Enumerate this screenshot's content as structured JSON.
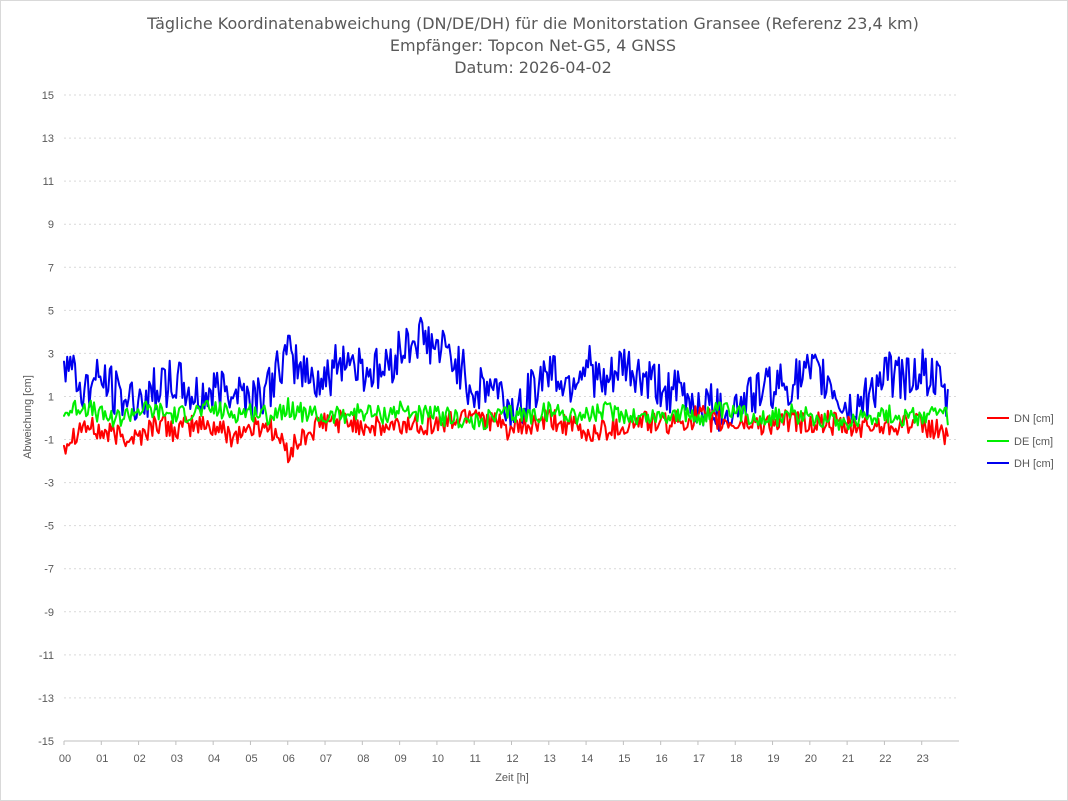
{
  "chart_data": {
    "type": "line",
    "title": [
      "Tägliche Koordinatenabweichung (DN/DE/DH) für die Monitorstation Gransee (Referenz 23,4 km)",
      "Empfänger: Topcon Net-G5, 4 GNSS",
      "Datum: 2026-04-02"
    ],
    "xlabel": "Zeit [h]",
    "ylabel": "Abweichung [cm]",
    "xlim": [
      0,
      24
    ],
    "ylim": [
      -15,
      15
    ],
    "y_ticks": [
      "15",
      "13",
      "11",
      "9",
      "7",
      "5",
      "3",
      "1",
      "-1",
      "-3",
      "-5",
      "-7",
      "-9",
      "-11",
      "-13",
      "-15"
    ],
    "x_ticks": [
      "00",
      "01",
      "02",
      "03",
      "04",
      "05",
      "06",
      "07",
      "08",
      "09",
      "10",
      "11",
      "12",
      "13",
      "14",
      "15",
      "16",
      "17",
      "18",
      "19",
      "20",
      "21",
      "22",
      "23"
    ],
    "grid": "horizontal",
    "legend_position": "right",
    "series": [
      {
        "name": "DN [cm]",
        "color": "#ff0000",
        "x": [
          0,
          0.5,
          1,
          1.5,
          2,
          2.5,
          3,
          3.5,
          4,
          4.5,
          5,
          5.5,
          6,
          6.5,
          7,
          7.5,
          8,
          8.5,
          9,
          9.5,
          10,
          10.5,
          11,
          11.5,
          12,
          12.5,
          13,
          13.5,
          14,
          14.5,
          15,
          15.5,
          16,
          16.5,
          17,
          17.5,
          18,
          18.5,
          19,
          19.5,
          20,
          20.5,
          21,
          21.5,
          22,
          22.5,
          23,
          23.5,
          23.7
        ],
        "values": [
          -1.2,
          -0.3,
          -0.7,
          -0.8,
          -0.9,
          -0.2,
          -0.6,
          -0.3,
          -0.4,
          -0.8,
          -0.5,
          -0.3,
          -1.6,
          -0.8,
          -0.2,
          -0.1,
          -0.3,
          -0.5,
          -0.4,
          -0.2,
          -0.3,
          -0.1,
          0.4,
          -0.2,
          -0.6,
          -0.4,
          -0.1,
          -0.3,
          -0.8,
          -0.5,
          -0.4,
          -0.1,
          -0.3,
          -0.2,
          0.1,
          -0.2,
          -0.3,
          -0.2,
          -0.3,
          -0.1,
          -0.3,
          -0.2,
          -0.5,
          -0.4,
          -0.3,
          -0.2,
          -0.4,
          -0.6,
          -0.8
        ]
      },
      {
        "name": "DE [cm]",
        "color": "#00ee00",
        "x": [
          0,
          0.5,
          1,
          1.5,
          2,
          2.5,
          3,
          3.5,
          4,
          4.5,
          5,
          5.5,
          6,
          6.5,
          7,
          7.5,
          8,
          8.5,
          9,
          9.5,
          10,
          10.5,
          11,
          11.5,
          12,
          12.5,
          13,
          13.5,
          14,
          14.5,
          15,
          15.5,
          16,
          16.5,
          17,
          17.5,
          18,
          18.5,
          19,
          19.5,
          20,
          20.5,
          21,
          21.5,
          22,
          22.5,
          23,
          23.5,
          23.7
        ],
        "values": [
          0.2,
          0.6,
          0.1,
          0.0,
          0.4,
          0.3,
          0.1,
          0.3,
          0.4,
          0.2,
          0.3,
          0.1,
          0.5,
          0.2,
          0.0,
          0.2,
          0.3,
          0.1,
          0.4,
          0.2,
          0.1,
          0.0,
          -0.3,
          0.0,
          0.2,
          0.1,
          0.3,
          0.2,
          0.1,
          0.3,
          0.2,
          0.0,
          0.1,
          0.2,
          0.0,
          0.3,
          0.2,
          0.1,
          0.0,
          0.2,
          0.1,
          0.0,
          -0.2,
          0.1,
          0.2,
          0.0,
          0.1,
          0.2,
          0.0
        ]
      },
      {
        "name": "DH [cm]",
        "color": "#0000ee",
        "x": [
          0,
          0.5,
          1,
          1.5,
          2,
          2.5,
          3,
          3.5,
          4,
          4.5,
          5,
          5.5,
          6,
          6.5,
          7,
          7.5,
          8,
          8.5,
          9,
          9.5,
          10,
          10.5,
          11,
          11.5,
          12,
          12.5,
          13,
          13.5,
          14,
          14.5,
          15,
          15.5,
          16,
          16.5,
          17,
          17.5,
          18,
          18.5,
          19,
          19.5,
          20,
          20.5,
          21,
          21.5,
          22,
          22.5,
          23,
          23.5,
          23.7
        ],
        "values": [
          2.9,
          1.2,
          1.8,
          0.9,
          0.8,
          1.5,
          1.7,
          0.9,
          1.2,
          1.6,
          1.0,
          1.4,
          3.0,
          2.1,
          1.7,
          2.9,
          2.3,
          2.1,
          3.1,
          3.8,
          3.2,
          2.7,
          1.2,
          1.6,
          0.3,
          1.1,
          2.4,
          1.5,
          2.6,
          1.3,
          2.4,
          1.8,
          1.5,
          1.2,
          0.6,
          0.5,
          0.5,
          1.3,
          1.5,
          1.6,
          2.0,
          1.7,
          0.3,
          0.8,
          2.2,
          1.9,
          2.3,
          1.4,
          0.5
        ]
      }
    ]
  }
}
